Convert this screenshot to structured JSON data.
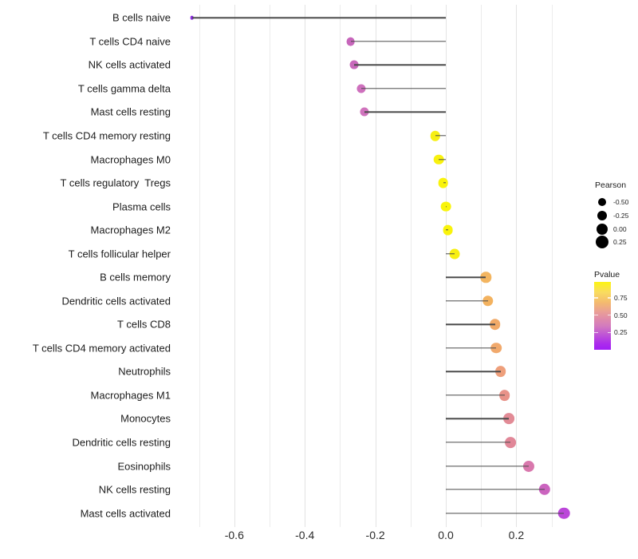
{
  "chart_data": {
    "type": "scatter",
    "style": "lollipop-horizontal",
    "title": "",
    "xlabel": "",
    "ylabel": "",
    "xlim": [
      -0.75,
      0.35
    ],
    "grid": true,
    "x_ticks": [
      -0.6,
      -0.4,
      -0.2,
      0.0,
      0.2
    ],
    "x_tick_labels": [
      "-0.6",
      "-0.4",
      "-0.2",
      "0.0",
      "0.2"
    ],
    "x_minor_ticks": [
      -0.7,
      -0.5,
      -0.3,
      -0.1,
      0.1,
      0.3
    ],
    "categories": [
      "B cells naive",
      "T cells CD4 naive",
      "NK cells activated",
      "T cells gamma delta",
      "Mast cells resting",
      "T cells CD4 memory resting",
      "Macrophages M0",
      "T cells regulatory  Tregs",
      "Plasma cells",
      "Macrophages M2",
      "T cells follicular helper",
      "B cells memory",
      "Dendritic cells activated",
      "T cells CD8",
      "T cells CD4 memory activated",
      "Neutrophils",
      "Macrophages M1",
      "Monocytes",
      "Dendritic cells resting",
      "Eosinophils",
      "NK cells resting",
      "Mast cells activated"
    ],
    "series": [
      {
        "name": "Pearson correlation vs. immune cell type (color = Pvalue)",
        "points": [
          {
            "label": "B cells naive",
            "pearson": -0.72,
            "pvalue": 0.01,
            "color": "#8B2BE0"
          },
          {
            "label": "T cells CD4 naive",
            "pearson": -0.27,
            "pvalue": 0.29,
            "color": "#C766BB"
          },
          {
            "label": "NK cells activated",
            "pearson": -0.26,
            "pvalue": 0.3,
            "color": "#C868BB"
          },
          {
            "label": "T cells gamma delta",
            "pearson": -0.24,
            "pvalue": 0.32,
            "color": "#CE70BD"
          },
          {
            "label": "Mast cells resting",
            "pearson": -0.23,
            "pvalue": 0.33,
            "color": "#D073BD"
          },
          {
            "label": "T cells CD4 memory resting",
            "pearson": -0.03,
            "pvalue": 0.9,
            "color": "#F7EF12"
          },
          {
            "label": "Macrophages M0",
            "pearson": -0.02,
            "pvalue": 0.91,
            "color": "#F8F10E"
          },
          {
            "label": "T cells regulatory  Tregs",
            "pearson": -0.008,
            "pvalue": 0.94,
            "color": "#F9F30B"
          },
          {
            "label": "Plasma cells",
            "pearson": 0.0,
            "pvalue": 0.95,
            "color": "#F9F40A"
          },
          {
            "label": "Macrophages M2",
            "pearson": 0.006,
            "pvalue": 0.94,
            "color": "#F9F30B"
          },
          {
            "label": "T cells follicular helper",
            "pearson": 0.025,
            "pvalue": 0.9,
            "color": "#F7EF12"
          },
          {
            "label": "B cells memory",
            "pearson": 0.114,
            "pvalue": 0.66,
            "color": "#F3B560"
          },
          {
            "label": "Dendritic cells activated",
            "pearson": 0.119,
            "pvalue": 0.65,
            "color": "#F3B25F"
          },
          {
            "label": "T cells CD8",
            "pearson": 0.14,
            "pvalue": 0.61,
            "color": "#F1AA68"
          },
          {
            "label": "T cells CD4 memory activated",
            "pearson": 0.143,
            "pvalue": 0.6,
            "color": "#F1A96C"
          },
          {
            "label": "Neutrophils",
            "pearson": 0.155,
            "pvalue": 0.55,
            "color": "#EE9F7B"
          },
          {
            "label": "Macrophages M1",
            "pearson": 0.167,
            "pvalue": 0.49,
            "color": "#E89289"
          },
          {
            "label": "Monocytes",
            "pearson": 0.179,
            "pvalue": 0.45,
            "color": "#E28B96"
          },
          {
            "label": "Dendritic cells resting",
            "pearson": 0.183,
            "pvalue": 0.44,
            "color": "#E18798"
          },
          {
            "label": "Eosinophils",
            "pearson": 0.235,
            "pvalue": 0.36,
            "color": "#D978AD"
          },
          {
            "label": "NK cells resting",
            "pearson": 0.28,
            "pvalue": 0.28,
            "color": "#CB64BF"
          },
          {
            "label": "Mast cells activated",
            "pearson": 0.335,
            "pvalue": 0.18,
            "color": "#BB46D9"
          }
        ]
      }
    ],
    "legend_pearson": {
      "title": "Pearson",
      "items": [
        {
          "label": "-0.50",
          "diameter": 10
        },
        {
          "label": "-0.25",
          "diameter": 12
        },
        {
          "label": "0.00",
          "diameter": 14
        },
        {
          "label": "0.25",
          "diameter": 16
        }
      ],
      "dot_color": "#000000"
    },
    "legend_pvalue": {
      "title": "Pvalue",
      "range": [
        0,
        0.98
      ],
      "tick_values": [
        0.75,
        0.5,
        0.25
      ],
      "tick_labels": [
        "0.75",
        "0.50",
        "0.25"
      ],
      "gradient": [
        {
          "color": "#FCF413",
          "pos": 0
        },
        {
          "color": "#F9DC60",
          "pos": 15
        },
        {
          "color": "#F4BB6E",
          "pos": 30
        },
        {
          "color": "#EA9F96",
          "pos": 44
        },
        {
          "color": "#DF8AAB",
          "pos": 55
        },
        {
          "color": "#D37BBE",
          "pos": 65
        },
        {
          "color": "#C057D4",
          "pos": 77
        },
        {
          "color": "#AC2CEC",
          "pos": 91
        },
        {
          "color": "#A21EF5",
          "pos": 100
        }
      ]
    },
    "legend_position": "right"
  }
}
